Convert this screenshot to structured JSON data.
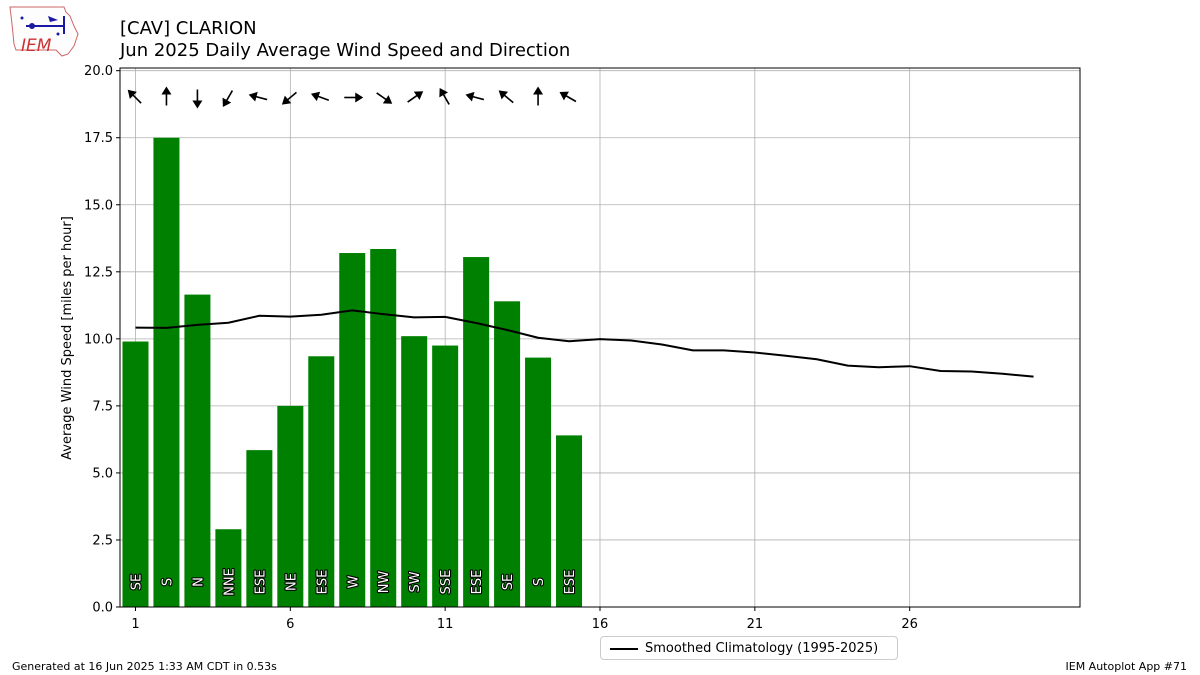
{
  "header": {
    "title_line1": "[CAV] CLARION",
    "title_line2": "Jun 2025 Daily Average Wind Speed and Direction"
  },
  "logo": {
    "text": "IEM",
    "color": "#cc3333"
  },
  "footer": {
    "generated": "Generated at 16 Jun 2025 1:33 AM CDT in 0.53s",
    "app": "IEM Autoplot App #71"
  },
  "legend": {
    "climatology_label": "Smoothed Climatology (1995-2025)"
  },
  "chart_data": {
    "type": "bar",
    "ylabel": "Average Wind Speed [miles per hour]",
    "xlim": [
      0.5,
      31.5
    ],
    "ylim": [
      0,
      20.1
    ],
    "xticks": [
      1,
      6,
      11,
      16,
      21,
      26
    ],
    "yticks": [
      "0.0",
      "2.5",
      "5.0",
      "7.5",
      "10.0",
      "12.5",
      "15.0",
      "17.5",
      "20.0"
    ],
    "grid": true,
    "legend_position": "bottom-center",
    "bar_color": "#008000",
    "bars": [
      {
        "day": 1,
        "speed": 9.9,
        "dir_label": "SE",
        "dir_deg": 135
      },
      {
        "day": 2,
        "speed": 17.5,
        "dir_label": "S",
        "dir_deg": 180
      },
      {
        "day": 3,
        "speed": 11.65,
        "dir_label": "N",
        "dir_deg": 0
      },
      {
        "day": 4,
        "speed": 2.9,
        "dir_label": "NNE",
        "dir_deg": 30
      },
      {
        "day": 5,
        "speed": 5.85,
        "dir_label": "ESE",
        "dir_deg": 105
      },
      {
        "day": 6,
        "speed": 7.5,
        "dir_label": "NE",
        "dir_deg": 50
      },
      {
        "day": 7,
        "speed": 9.35,
        "dir_label": "ESE",
        "dir_deg": 110
      },
      {
        "day": 8,
        "speed": 13.2,
        "dir_label": "W",
        "dir_deg": 270
      },
      {
        "day": 9,
        "speed": 13.35,
        "dir_label": "NW",
        "dir_deg": 305
      },
      {
        "day": 10,
        "speed": 10.1,
        "dir_label": "SW",
        "dir_deg": 235
      },
      {
        "day": 11,
        "speed": 9.75,
        "dir_label": "SSE",
        "dir_deg": 150
      },
      {
        "day": 12,
        "speed": 13.05,
        "dir_label": "ESE",
        "dir_deg": 105
      },
      {
        "day": 13,
        "speed": 11.4,
        "dir_label": "SE",
        "dir_deg": 130
      },
      {
        "day": 14,
        "speed": 9.3,
        "dir_label": "S",
        "dir_deg": 180
      },
      {
        "day": 15,
        "speed": 6.4,
        "dir_label": "ESE",
        "dir_deg": 120
      }
    ],
    "series": [
      {
        "name": "Smoothed Climatology (1995-2025)",
        "color": "#000000",
        "x": [
          1,
          2,
          3,
          4,
          5,
          6,
          7,
          8,
          9,
          10,
          11,
          12,
          13,
          14,
          15,
          16,
          17,
          18,
          19,
          20,
          21,
          22,
          23,
          24,
          25,
          26,
          27,
          28,
          29,
          30
        ],
        "values": [
          10.42,
          10.41,
          10.52,
          10.6,
          10.86,
          10.83,
          10.9,
          11.06,
          10.92,
          10.8,
          10.82,
          10.59,
          10.33,
          10.04,
          9.91,
          9.99,
          9.94,
          9.79,
          9.57,
          9.57,
          9.49,
          9.37,
          9.24,
          9.0,
          8.94,
          8.98,
          8.8,
          8.78,
          8.7,
          8.59
        ]
      }
    ]
  }
}
